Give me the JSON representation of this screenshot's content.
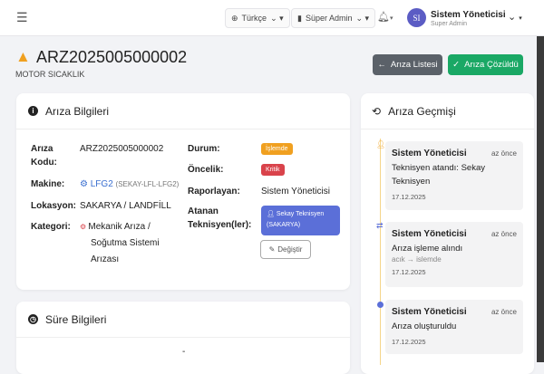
{
  "topbar": {
    "language": "Türkçe",
    "role_select": "Süper Admin",
    "user_name": "Sistem Yöneticisi",
    "user_role": "Super Admin",
    "avatar_initials": "SI"
  },
  "page": {
    "title": "ARZ2025005000002",
    "subtitle": "MOTOR SICAKLIK",
    "back_button": "Arıza Listesi",
    "resolve_button": "Arıza Çözüldü"
  },
  "colors": {
    "warning": "#f0a020",
    "success": "#1aa865",
    "secondary": "#5b6169",
    "primary": "#5b6fd8",
    "danger": "#d9434b"
  },
  "info": {
    "title": "Arıza Bilgileri",
    "code_label": "Arıza Kodu:",
    "code": "ARZ2025005000002",
    "machine_label": "Makine:",
    "machine": "LFG2",
    "machine_code": "(SEKAY-LFL-LFG2)",
    "location_label": "Lokasyon:",
    "location": "SAKARYA / LANDFİLL",
    "category_label": "Kategori:",
    "category": "Mekanik Arıza / Soğutma Sistemi Arızası",
    "status_label": "Durum:",
    "status": "İşlemde",
    "priority_label": "Öncelik:",
    "priority": "Kritik",
    "reporter_label": "Raporlayan:",
    "reporter": "Sistem Yöneticisi",
    "assigned_label": "Atanan Teknisyen(ler):",
    "assigned": "Sekay Teknisyen (SAKARYA)",
    "change_button": "Değiştir"
  },
  "duration": {
    "title": "Süre Bilgileri",
    "value": "-"
  },
  "history": {
    "title": "Arıza Geçmişi",
    "items": [
      {
        "user": "Sistem Yöneticisi",
        "time": "az önce",
        "message": "Teknisyen atandı: Sekay Teknisyen",
        "detail": "",
        "date": "17.12.2025",
        "icon": "user-plus-icon"
      },
      {
        "user": "Sistem Yöneticisi",
        "time": "az önce",
        "message": "Arıza işleme alındı",
        "detail": "acık → islemde",
        "date": "17.12.2025",
        "icon": "exchange-icon"
      },
      {
        "user": "Sistem Yöneticisi",
        "time": "az önce",
        "message": "Arıza oluşturuldu",
        "detail": "",
        "date": "17.12.2025",
        "icon": "circle-icon"
      }
    ]
  }
}
